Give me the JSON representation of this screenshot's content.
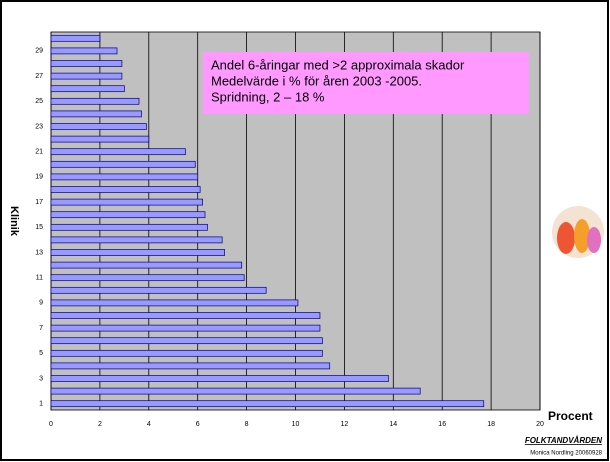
{
  "chart_data": {
    "type": "barh",
    "annotation": [
      "Andel 6-åringar med >2 approximala skador",
      "Medelvärde i % för åren 2003 -2005.",
      "Spridning,  2 – 18 %"
    ],
    "ylabel": "Klinik",
    "xlabel": "Procent",
    "categories": [
      "1",
      null,
      "3",
      null,
      "5",
      null,
      "7",
      null,
      "9",
      null,
      "11",
      null,
      "13",
      null,
      "15",
      null,
      "17",
      null,
      "19",
      null,
      "21",
      null,
      "23",
      null,
      "25",
      null,
      "27",
      null,
      "29",
      null
    ],
    "values": [
      17.7,
      15.1,
      13.8,
      11.4,
      11.1,
      11.1,
      11.0,
      11.0,
      10.1,
      8.8,
      7.9,
      7.8,
      7.1,
      7.0,
      6.4,
      6.3,
      6.2,
      6.1,
      6.0,
      5.9,
      5.5,
      4.0,
      3.9,
      3.7,
      3.6,
      3.0,
      2.9,
      2.9,
      2.7,
      2.0
    ],
    "color": "#9999ff",
    "background": "#c0c0c0",
    "xlim": [
      0,
      20
    ],
    "xticks": [
      0,
      2,
      4,
      6,
      8,
      10,
      12,
      14,
      16,
      18,
      20
    ],
    "grid": true,
    "logo": "FOLKTANDVÅRDEN",
    "footer": "Monica Nordling 20060928"
  }
}
